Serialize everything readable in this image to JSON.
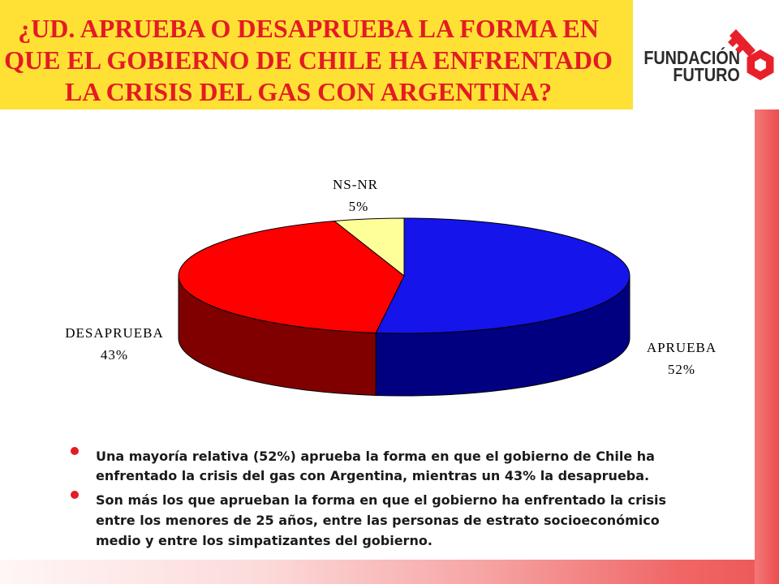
{
  "slide": {
    "title_lines": [
      "¿UD. APRUEBA O DESAPRUEBA LA FORMA EN",
      "QUE EL GOBIERNO DE CHILE HA ENFRENTADO",
      "LA CRISIS DEL GAS CON ARGENTINA?"
    ],
    "title_color": "#E31B23",
    "banner_color": "#FFE135"
  },
  "logo": {
    "line1": "FUNDACIÓN",
    "line2": "FUTURO",
    "icon": "key-icon",
    "text_color": "#2B2B2B",
    "icon_color": "#E8202A"
  },
  "chart_data": {
    "type": "pie",
    "three_d": true,
    "categories": [
      "APRUEBA",
      "DESAPRUEBA",
      "NS-NR"
    ],
    "values": [
      52,
      43,
      5
    ],
    "value_labels": [
      "52%",
      "43%",
      "5%"
    ],
    "colors": [
      "#1414EB",
      "#FF0000",
      "#FFFF99"
    ],
    "side_colors": [
      "#000080",
      "#800000",
      "#B3B36B"
    ]
  },
  "bullets": [
    {
      "lines": [
        "Una mayoría relativa (52%) aprueba la forma en que el gobierno de Chile ha",
        "enfrentado la crisis del gas con Argentina, mientras un 43% la desaprueba."
      ]
    },
    {
      "lines": [
        "Son más los que aprueban la forma en que el gobierno ha enfrentado la crisis",
        "entre los menores de 25 años, entre las personas de estrato socioeconómico",
        "medio y entre los simpatizantes del gobierno."
      ]
    }
  ],
  "theme": {
    "bullet_color": "#E31B23",
    "strip_color": "#EE5555"
  }
}
